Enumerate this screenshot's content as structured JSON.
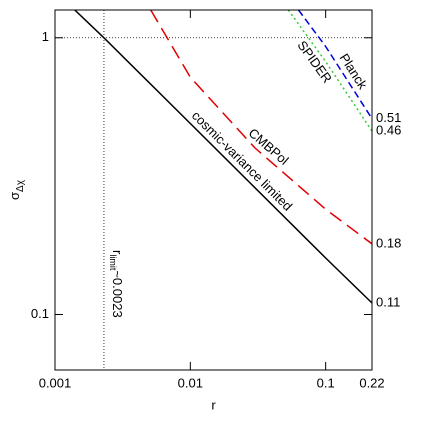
{
  "chart_data": {
    "type": "line",
    "xlabel": "r",
    "ylabel": {
      "symbol": "σ",
      "subscript": "Δχ"
    },
    "log_x": true,
    "log_y": true,
    "xlim": [
      0.001,
      0.22
    ],
    "xticks": [
      0.001,
      0.01,
      0.1,
      0.22
    ],
    "ylim": [
      0.063,
      1.26
    ],
    "yticks": [
      0.1,
      1
    ],
    "hline": 1,
    "vline": {
      "value": 0.0023,
      "symbol": "r",
      "subscript": "limit",
      "text": "~0.0023"
    },
    "series": [
      {
        "name": "cosmic-variance limited",
        "color": "#000000",
        "style": "solid",
        "x": [
          0.0014,
          0.0023,
          0.01,
          0.1,
          0.22
        ],
        "values": [
          1.26,
          1.0,
          0.49,
          0.16,
          0.11
        ]
      },
      {
        "name": "CMBPol",
        "color": "#e00000",
        "style": "long-dash",
        "x": [
          0.0051,
          0.01,
          0.03,
          0.1,
          0.22
        ],
        "values": [
          1.26,
          0.72,
          0.4,
          0.24,
          0.18
        ]
      },
      {
        "name": "Planck",
        "color": "#0000dd",
        "style": "dash",
        "x": [
          0.063,
          0.1,
          0.22
        ],
        "values": [
          1.26,
          0.93,
          0.51
        ]
      },
      {
        "name": "SPIDER",
        "color": "#33cc33",
        "style": "dot",
        "x": [
          0.053,
          0.1,
          0.22
        ],
        "values": [
          1.26,
          0.82,
          0.46
        ]
      }
    ]
  }
}
